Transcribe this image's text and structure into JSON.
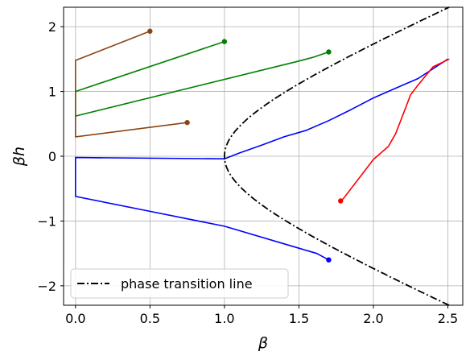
{
  "chart_data": {
    "type": "line",
    "xlabel": "β",
    "ylabel": "βh",
    "xlim": [
      -0.08,
      2.6
    ],
    "ylim": [
      -2.3,
      2.3
    ],
    "xticks": [
      0.0,
      0.5,
      1.0,
      1.5,
      2.0,
      2.5
    ],
    "xtick_labels": [
      "0.0",
      "0.5",
      "1.0",
      "1.5",
      "2.0",
      "2.5"
    ],
    "yticks": [
      -2,
      -1,
      0,
      1,
      2
    ],
    "ytick_labels": [
      "−2",
      "−1",
      "0",
      "1",
      "2"
    ],
    "grid": true,
    "legend": {
      "position": "lower-left",
      "entries": [
        {
          "label": "phase transition line",
          "style": "dash-dot",
          "color": "#000000"
        }
      ]
    },
    "series": [
      {
        "color": "#0000ff",
        "points": [
          [
            2.5,
            1.5
          ],
          [
            2.3,
            1.2
          ],
          [
            2.15,
            1.05
          ],
          [
            2.0,
            0.9
          ],
          [
            1.85,
            0.72
          ],
          [
            1.7,
            0.55
          ],
          [
            1.55,
            0.4
          ],
          [
            1.4,
            0.3
          ],
          [
            1.25,
            0.17
          ],
          [
            1.1,
            0.05
          ],
          [
            1.0,
            -0.04
          ],
          [
            0.0,
            -0.02
          ],
          [
            0.0,
            -0.62
          ],
          [
            0.5,
            -0.85
          ],
          [
            1.0,
            -1.08
          ],
          [
            1.5,
            -1.42
          ],
          [
            1.62,
            -1.5
          ],
          [
            1.7,
            -1.6
          ]
        ],
        "marker_end": true
      },
      {
        "color": "#ff0000",
        "points": [
          [
            2.51,
            1.5
          ],
          [
            2.4,
            1.38
          ],
          [
            2.3,
            1.1
          ],
          [
            2.25,
            0.95
          ],
          [
            2.2,
            0.65
          ],
          [
            2.15,
            0.35
          ],
          [
            2.1,
            0.15
          ],
          [
            2.05,
            0.05
          ],
          [
            2.0,
            -0.05
          ],
          [
            1.9,
            -0.35
          ],
          [
            1.8,
            -0.65
          ],
          [
            1.78,
            -0.69
          ]
        ],
        "marker_end": true
      },
      {
        "color": "#008000",
        "points": [
          [
            1.0,
            1.77
          ],
          [
            0.0,
            1.0
          ],
          [
            0.0,
            0.62
          ],
          [
            1.5,
            1.47
          ],
          [
            1.6,
            1.53
          ],
          [
            1.7,
            1.61
          ]
        ],
        "marker_start": true,
        "marker_end": true
      },
      {
        "color": "#8b4513",
        "points": [
          [
            0.5,
            1.93
          ],
          [
            0.0,
            1.48
          ],
          [
            0.0,
            0.3
          ],
          [
            0.75,
            0.52
          ]
        ],
        "marker_start": true,
        "marker_end": true
      }
    ],
    "phase_transition_line": {
      "label": "phase transition line",
      "color": "#000000",
      "style": "dash-dot",
      "y_range": [
        -2.3,
        2.3
      ]
    }
  }
}
